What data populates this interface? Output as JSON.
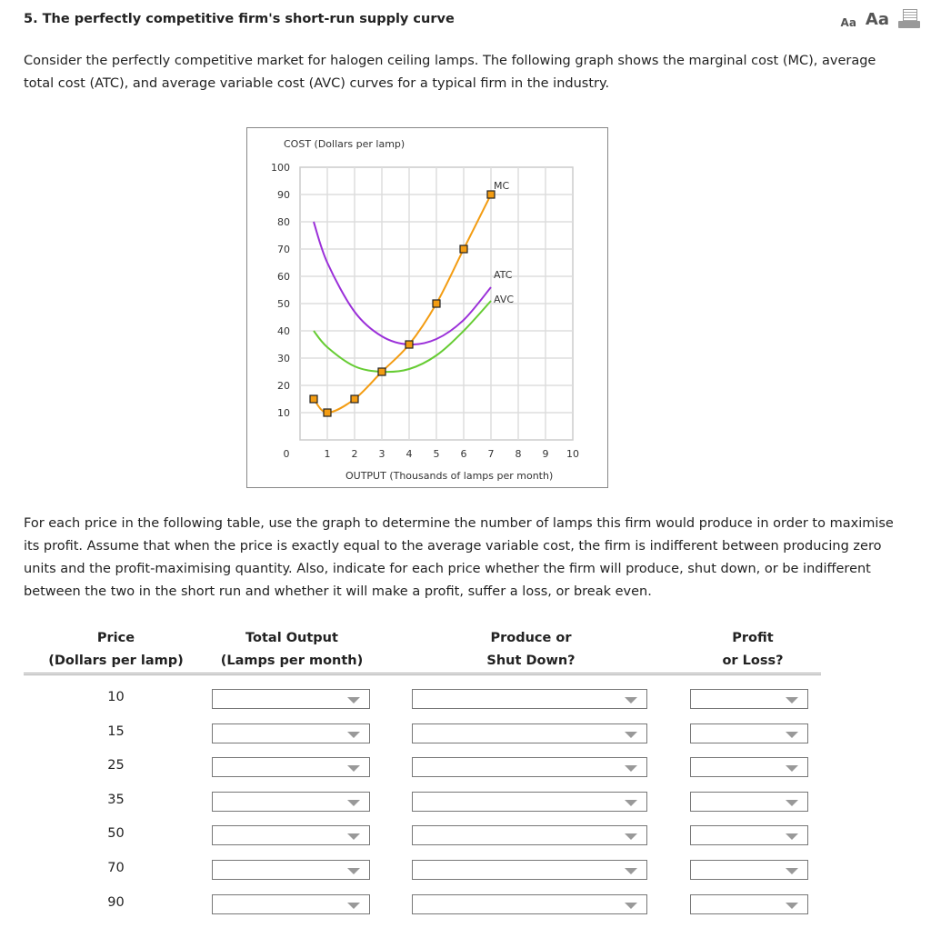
{
  "header": {
    "title": "5. The perfectly competitive firm's short-run supply curve",
    "font_small_label": "Aa",
    "font_large_label": "Aa",
    "print_icon": "print-icon"
  },
  "intro": "Consider the perfectly competitive market for halogen ceiling lamps. The following graph shows the marginal cost (MC), average total cost (ATC), and average variable cost (AVC) curves for a typical firm in the industry.",
  "chart_data": {
    "type": "line",
    "ylabel": "COST (Dollars per lamp)",
    "xlabel": "OUTPUT (Thousands of lamps per month)",
    "xlim": [
      0,
      10
    ],
    "ylim": [
      0,
      100
    ],
    "xticks": [
      "0",
      "1",
      "2",
      "3",
      "4",
      "5",
      "6",
      "7",
      "8",
      "9",
      "10"
    ],
    "yticks": [
      "10",
      "20",
      "30",
      "40",
      "50",
      "60",
      "70",
      "80",
      "90",
      "100"
    ],
    "grid": true,
    "series": [
      {
        "name": "MC",
        "color": "#f39c12",
        "markers": true,
        "x": [
          0.5,
          1,
          2,
          3,
          4,
          5,
          6,
          7
        ],
        "y": [
          15,
          10,
          15,
          25,
          35,
          50,
          70,
          90
        ]
      },
      {
        "name": "ATC",
        "color": "#9b30d9",
        "markers": false,
        "x": [
          0.5,
          1,
          2,
          3,
          4,
          5,
          6,
          7
        ],
        "y": [
          80,
          65,
          47,
          38,
          35,
          37,
          44,
          56
        ]
      },
      {
        "name": "AVC",
        "color": "#66cc33",
        "markers": false,
        "x": [
          0.5,
          1,
          2,
          3,
          4,
          5,
          6,
          7
        ],
        "y": [
          40,
          34,
          27,
          25,
          26,
          31,
          40,
          51
        ]
      }
    ]
  },
  "instructions": "For each price in the following table, use the graph to determine the number of lamps this firm would produce in order to maximise its profit. Assume that when the price is exactly equal to the average variable cost, the firm is indifferent between producing zero units and the profit-maximising quantity. Also, indicate for each price whether the firm will produce, shut down, or be indifferent between the two in the short run and whether it will make a profit, suffer a loss, or break even.",
  "table": {
    "headers": [
      {
        "line1": "Price",
        "line2": "(Dollars per lamp)"
      },
      {
        "line1": "Total Output",
        "line2": "(Lamps per month)"
      },
      {
        "line1": "Produce or",
        "line2": "Shut Down?"
      },
      {
        "line1": "Profit",
        "line2": "or Loss?"
      }
    ],
    "rows": [
      {
        "price": "10",
        "output": "",
        "produce": "",
        "profit": ""
      },
      {
        "price": "15",
        "output": "",
        "produce": "",
        "profit": ""
      },
      {
        "price": "25",
        "output": "",
        "produce": "",
        "profit": ""
      },
      {
        "price": "35",
        "output": "",
        "produce": "",
        "profit": ""
      },
      {
        "price": "50",
        "output": "",
        "produce": "",
        "profit": ""
      },
      {
        "price": "70",
        "output": "",
        "produce": "",
        "profit": ""
      },
      {
        "price": "90",
        "output": "",
        "produce": "",
        "profit": ""
      }
    ]
  }
}
